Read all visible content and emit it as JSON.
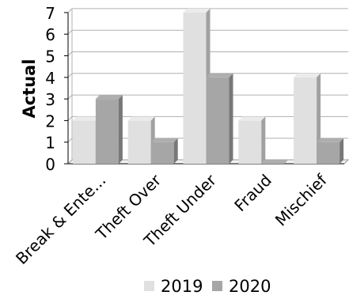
{
  "chart_data": {
    "type": "bar",
    "categories": [
      "Break & Ente...",
      "Theft Over",
      "Theft Under",
      "Fraud",
      "Mischief"
    ],
    "series": [
      {
        "name": "2019",
        "values": [
          2,
          2,
          7,
          2,
          4
        ],
        "color": "#e0e0e0"
      },
      {
        "name": "2020",
        "values": [
          3,
          1,
          4,
          0,
          1
        ],
        "color": "#a6a6a6"
      }
    ],
    "xlabel": "",
    "ylabel": "Actual",
    "ylim": [
      0,
      7
    ],
    "yticks": [
      0,
      1,
      2,
      3,
      4,
      5,
      6,
      7
    ],
    "grid": true,
    "style": "3d",
    "legend_position": "bottom"
  }
}
